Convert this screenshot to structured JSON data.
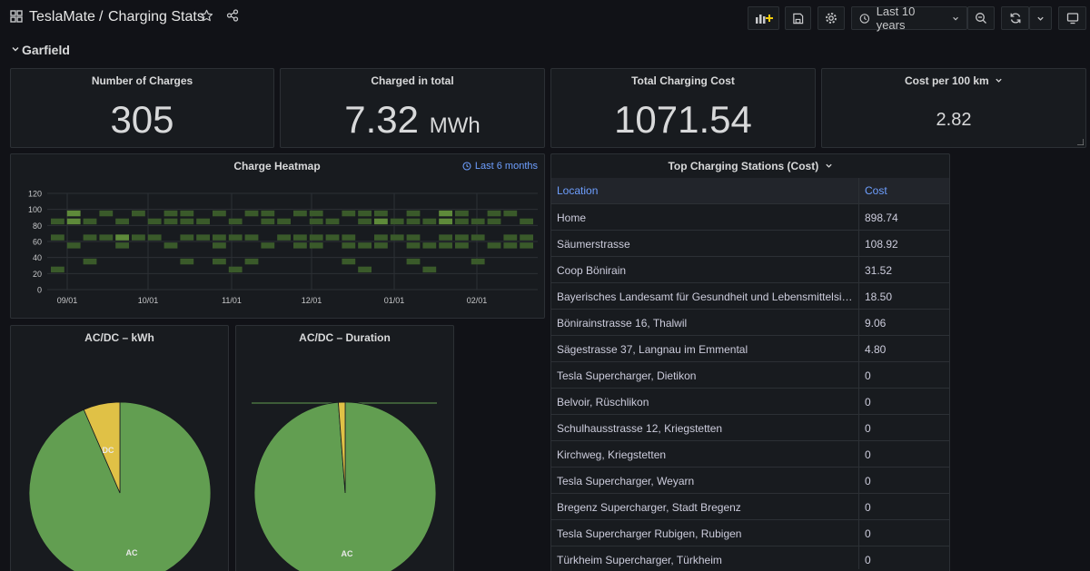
{
  "header": {
    "app_title": "TeslaMate",
    "separator": "/",
    "page_title": "Charging Stats",
    "time_range": "Last 10 years"
  },
  "row": {
    "title": "Garfield"
  },
  "stats": {
    "charges": {
      "title": "Number of Charges",
      "value": "305"
    },
    "charged": {
      "title": "Charged in total",
      "value": "7.32",
      "unit": "MWh"
    },
    "cost": {
      "title": "Total Charging Cost",
      "value": "1071.54"
    },
    "per100": {
      "title": "Cost per 100 km",
      "value": "2.82"
    }
  },
  "heatmap": {
    "title": "Charge Heatmap",
    "time_shift": "Last 6 months"
  },
  "chart_data": [
    {
      "type": "heatmap",
      "title": "Charge Heatmap",
      "ylim": [
        0,
        120
      ],
      "y_ticks": [
        "120",
        "100",
        "80",
        "60",
        "40",
        "20",
        "0"
      ],
      "x_ticks": [
        "09/01",
        "10/01",
        "11/01",
        "12/01",
        "01/01",
        "02/01"
      ],
      "bucket_size": 10,
      "bucket_starts": [
        90,
        80,
        60,
        50,
        30,
        20,
        0
      ],
      "intensity_scale": "green, brighter = more charges",
      "cells": [
        [
          0,
          0,
          1,
          1,
          0,
          0,
          1
        ],
        [
          1,
          2,
          2,
          0,
          1,
          0,
          0
        ],
        [
          2,
          0,
          1,
          1,
          0,
          1,
          0
        ],
        [
          3,
          1,
          0,
          1,
          0,
          0,
          0
        ],
        [
          4,
          0,
          1,
          2,
          1,
          0,
          0
        ],
        [
          5,
          1,
          0,
          1,
          0,
          0,
          0
        ],
        [
          6,
          0,
          1,
          1,
          0,
          0,
          0
        ],
        [
          7,
          1,
          1,
          0,
          1,
          0,
          0
        ],
        [
          8,
          1,
          1,
          1,
          0,
          1,
          0
        ],
        [
          9,
          0,
          1,
          1,
          0,
          0,
          0
        ],
        [
          10,
          1,
          0,
          1,
          1,
          1,
          0
        ],
        [
          11,
          0,
          1,
          1,
          0,
          0,
          1
        ],
        [
          12,
          1,
          0,
          1,
          0,
          1,
          0
        ],
        [
          13,
          1,
          1,
          0,
          1,
          0,
          0
        ],
        [
          14,
          0,
          1,
          1,
          0,
          0,
          0
        ],
        [
          15,
          1,
          0,
          1,
          1,
          0,
          0
        ],
        [
          16,
          1,
          1,
          1,
          1,
          0,
          0
        ],
        [
          17,
          0,
          1,
          1,
          0,
          0,
          0
        ],
        [
          18,
          1,
          0,
          1,
          1,
          1,
          0
        ],
        [
          19,
          1,
          1,
          0,
          1,
          0,
          1
        ],
        [
          20,
          1,
          2,
          1,
          1,
          0,
          0
        ],
        [
          21,
          0,
          1,
          1,
          0,
          0,
          0
        ],
        [
          22,
          1,
          1,
          1,
          1,
          1,
          0
        ],
        [
          23,
          0,
          1,
          0,
          1,
          0,
          1
        ],
        [
          24,
          2,
          2,
          1,
          1,
          0,
          0
        ],
        [
          25,
          1,
          1,
          1,
          1,
          0,
          0
        ],
        [
          26,
          0,
          1,
          1,
          0,
          1,
          0
        ],
        [
          27,
          1,
          1,
          0,
          1,
          0,
          0
        ],
        [
          28,
          1,
          0,
          1,
          1,
          0,
          0
        ],
        [
          29,
          0,
          1,
          1,
          1,
          0,
          0
        ]
      ]
    },
    {
      "type": "pie",
      "title": "AC/DC – kWh",
      "labels": [
        "AC",
        "DC"
      ],
      "values": [
        93.5,
        6.5
      ],
      "colors": [
        "#629e51",
        "#e0c146"
      ]
    },
    {
      "type": "pie",
      "title": "AC/DC – Duration",
      "labels": [
        "AC",
        "DC"
      ],
      "values": [
        98.8,
        1.2
      ],
      "colors": [
        "#629e51",
        "#e0c146"
      ]
    }
  ],
  "table": {
    "title": "Top Charging Stations (Cost)",
    "columns": [
      "Location",
      "Cost"
    ],
    "rows": [
      [
        "Home",
        "898.74"
      ],
      [
        "Säumerstrasse",
        "108.92"
      ],
      [
        "Coop Bönirain",
        "31.52"
      ],
      [
        "Bayerisches Landesamt für Gesundheit und Lebensmittelsic...",
        "18.50"
      ],
      [
        "Bönirainstrasse 16, Thalwil",
        "9.06"
      ],
      [
        "Sägestrasse 37, Langnau im Emmental",
        "4.80"
      ],
      [
        "Tesla Supercharger, Dietikon",
        "0"
      ],
      [
        "Belvoir, Rüschlikon",
        "0"
      ],
      [
        "Schulhausstrasse 12, Kriegstetten",
        "0"
      ],
      [
        "Kirchweg, Kriegstetten",
        "0"
      ],
      [
        "Tesla Supercharger, Weyarn",
        "0"
      ],
      [
        "Bregenz Supercharger, Stadt Bregenz",
        "0"
      ],
      [
        "Tesla Supercharger Rubigen, Rubigen",
        "0"
      ],
      [
        "Türkheim Supercharger, Türkheim",
        "0"
      ]
    ]
  },
  "icons": {
    "apps": "apps-grid-icon",
    "star": "star-icon",
    "share": "share-icon",
    "add_panel": "add-panel-icon",
    "save": "save-icon",
    "settings": "gear-icon",
    "clock": "clock-icon",
    "zoom_out": "zoom-out-icon",
    "refresh": "refresh-icon",
    "tv": "tv-mode-icon"
  }
}
